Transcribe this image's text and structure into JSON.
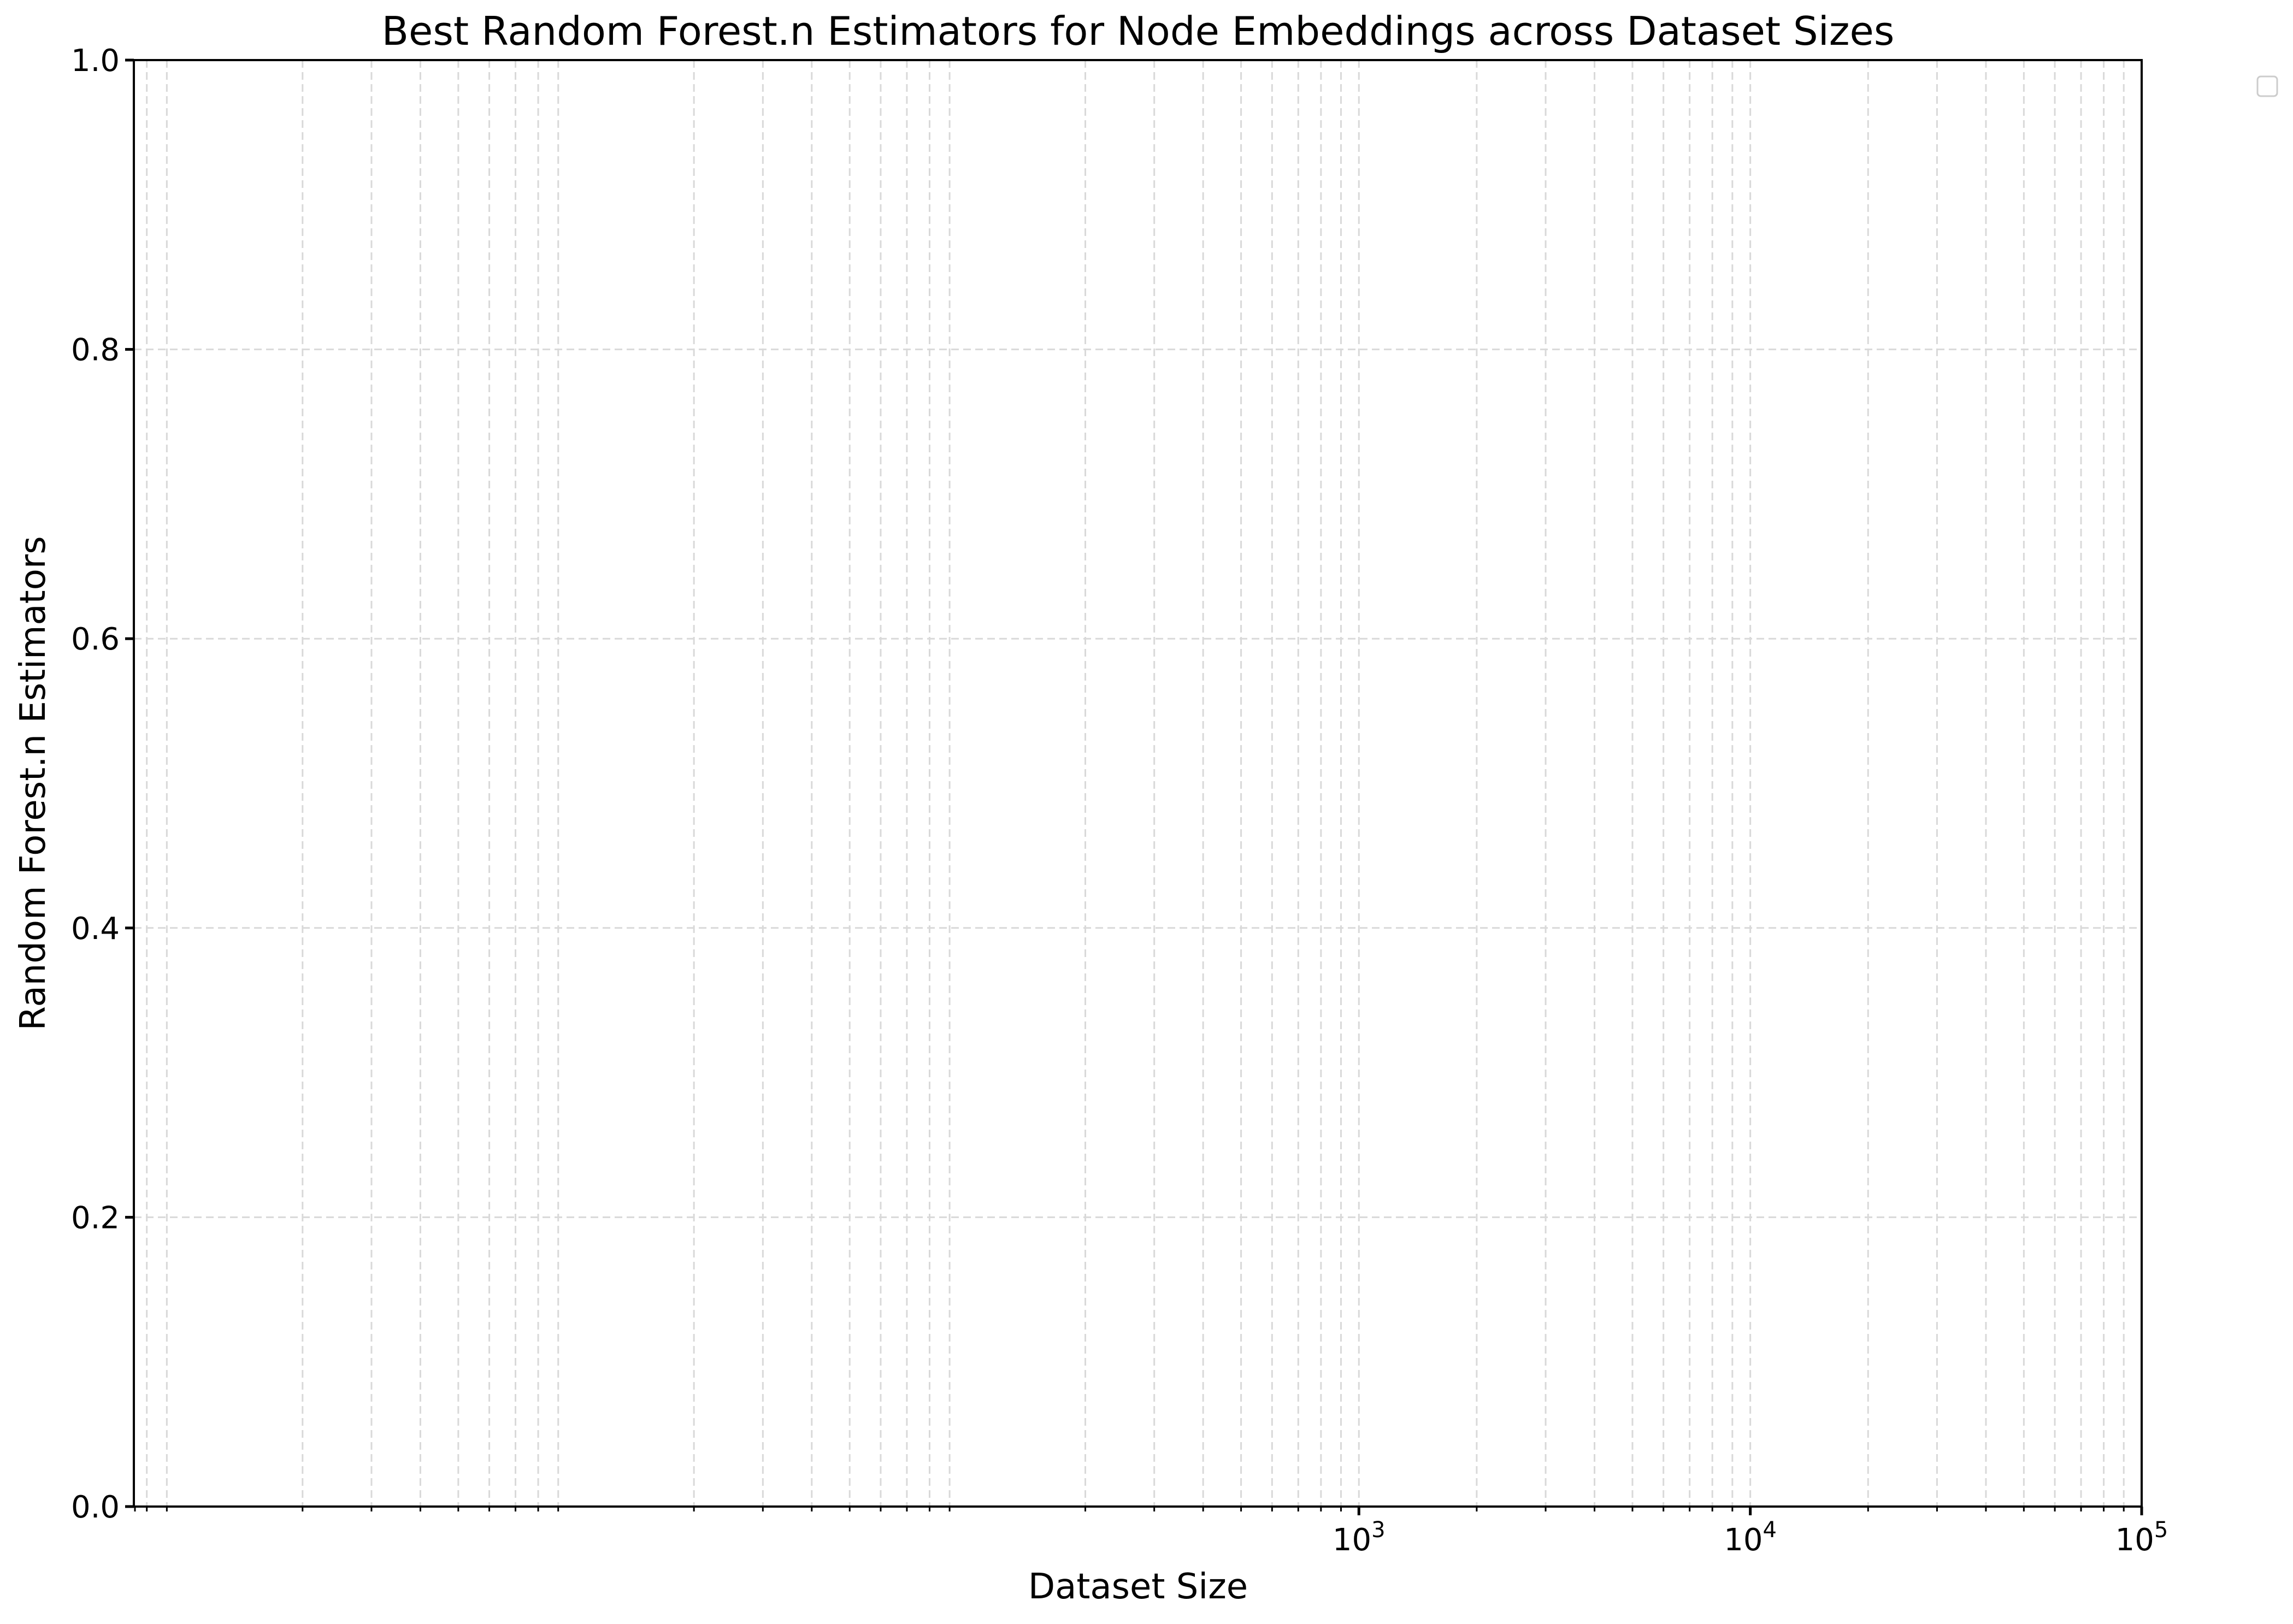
{
  "chart_data": {
    "type": "line",
    "title": "Best Random Forest.n Estimators for Node Embeddings across Dataset Sizes",
    "xlabel": "Dataset Size",
    "ylabel": "Random Forest.n Estimators",
    "x_scale": "log",
    "x_major_ticks": [
      {
        "value": 1000,
        "base": "10",
        "exp": "3"
      },
      {
        "value": 10000,
        "base": "10",
        "exp": "4"
      },
      {
        "value": 100000,
        "base": "10",
        "exp": "5"
      }
    ],
    "y_ticks": [
      "0.0",
      "0.2",
      "0.4",
      "0.6",
      "0.8",
      "1.0"
    ],
    "ylim": [
      0,
      1
    ],
    "grid": true,
    "grid_style": "dashed",
    "series": [],
    "legend": {
      "placement": "upper-right-outside",
      "entries": []
    },
    "colors": {
      "axis": "#000000",
      "grid": "#d9d9d9",
      "background": "#ffffff"
    }
  }
}
